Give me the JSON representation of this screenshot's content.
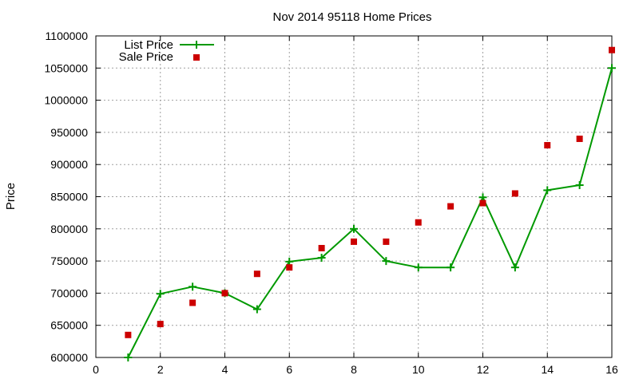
{
  "chart_data": {
    "type": "line",
    "title": "Nov 2014 95118 Home Prices",
    "xlabel": "",
    "ylabel": "Price",
    "xlim": [
      0,
      16
    ],
    "ylim": [
      600000,
      1100000
    ],
    "x_ticks": [
      "0",
      "2",
      "4",
      "6",
      "8",
      "10",
      "12",
      "14",
      "16"
    ],
    "y_ticks": [
      "600000",
      "650000",
      "700000",
      "750000",
      "800000",
      "850000",
      "900000",
      "950000",
      "1000000",
      "1050000",
      "1100000"
    ],
    "grid": true,
    "legend_position": "top-left",
    "series": [
      {
        "name": "List Price",
        "style": "line with plus markers",
        "color": "#009900",
        "x": [
          1,
          2,
          3,
          4,
          5,
          6,
          7,
          8,
          9,
          10,
          11,
          12,
          13,
          14,
          15,
          16
        ],
        "y": [
          600000,
          699000,
          710000,
          700000,
          675000,
          749000,
          755000,
          800000,
          750000,
          740000,
          740000,
          849000,
          740000,
          860000,
          868000,
          1050000
        ]
      },
      {
        "name": "Sale Price",
        "style": "square points",
        "color": "#cc0000",
        "x": [
          1,
          2,
          3,
          4,
          5,
          6,
          7,
          8,
          9,
          10,
          11,
          12,
          13,
          14,
          15,
          16
        ],
        "y": [
          635000,
          652000,
          685000,
          700000,
          730000,
          740000,
          770000,
          780000,
          780000,
          810000,
          835000,
          840000,
          855000,
          930000,
          940000,
          1078000
        ]
      }
    ]
  }
}
